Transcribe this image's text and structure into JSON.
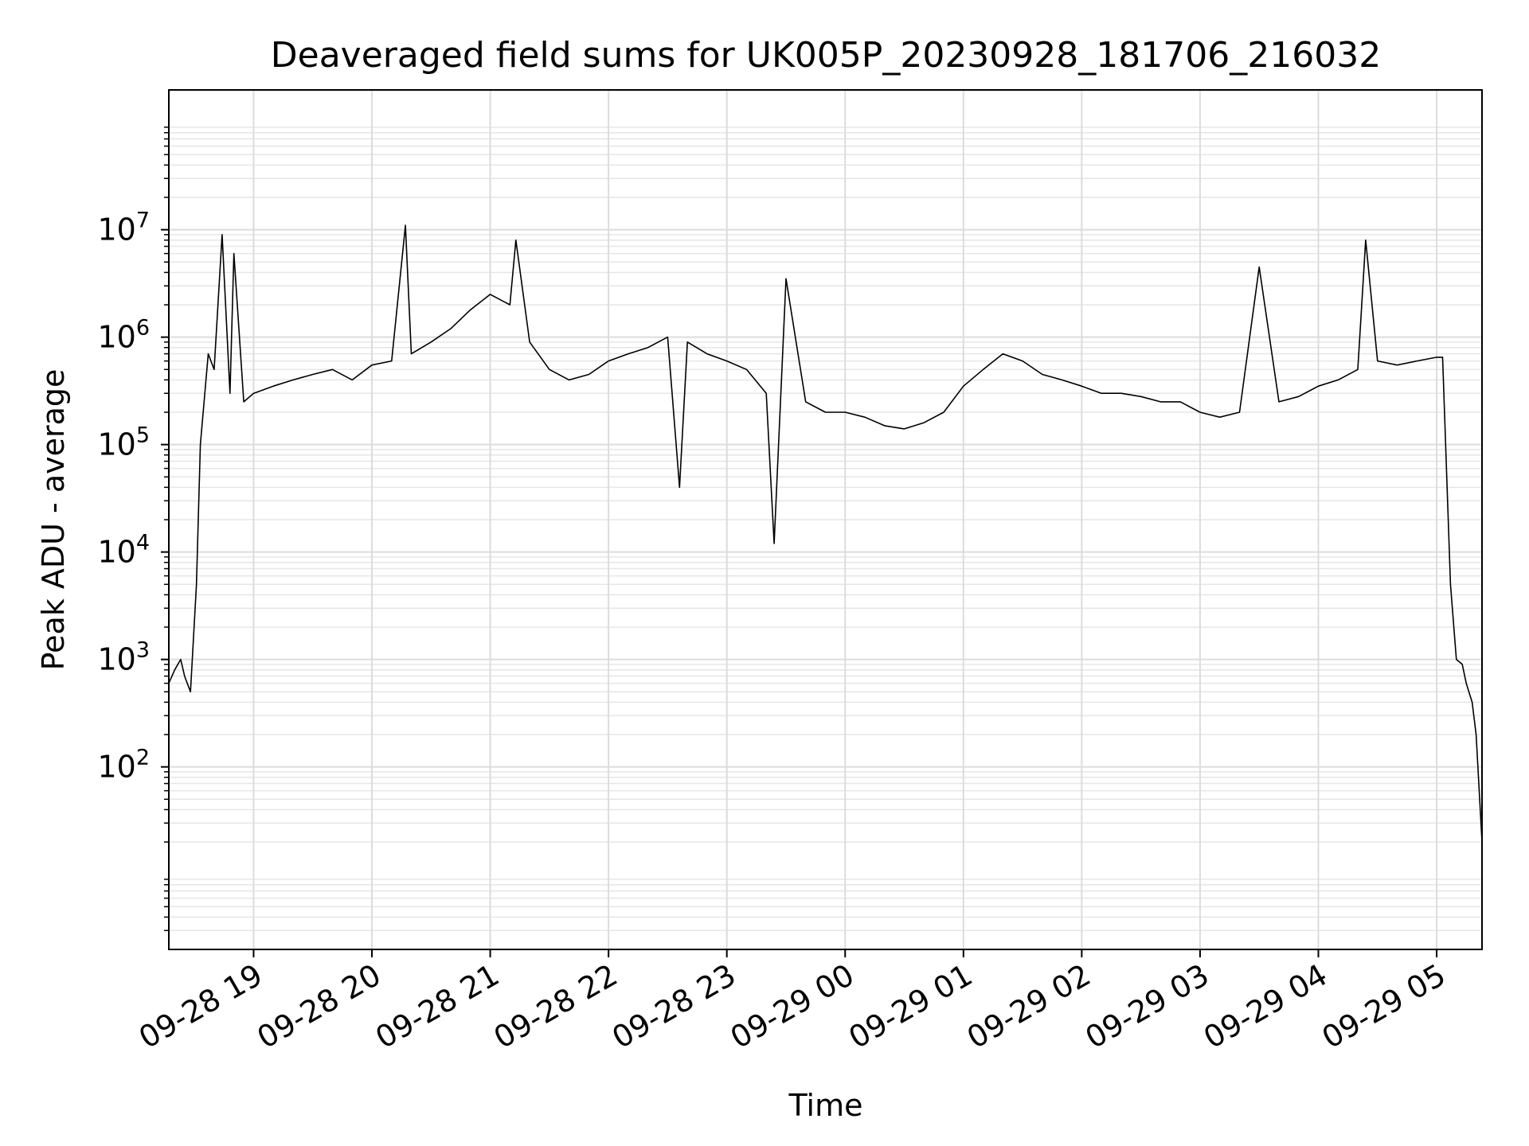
{
  "chart_data": {
    "type": "line",
    "title": "Deaveraged field sums for UK005P_20230928_181706_216032",
    "xlabel": "Time",
    "ylabel": "Peak ADU - average",
    "yscale": "log",
    "ylim": [
      2,
      200000000
    ],
    "xlim": [
      "2023-09-28 18:17",
      "2023-09-29 05:23"
    ],
    "grid": "major and minor",
    "line_color": "#000000",
    "x_ticks": [
      "09-28 19",
      "09-28 20",
      "09-28 21",
      "09-28 22",
      "09-28 23",
      "09-29 00",
      "09-29 01",
      "09-29 02",
      "09-29 03",
      "09-29 04",
      "09-29 05"
    ],
    "y_ticks": [
      {
        "value": 100,
        "exp": "2"
      },
      {
        "value": 1000,
        "exp": "3"
      },
      {
        "value": 10000,
        "exp": "4"
      },
      {
        "value": 100000,
        "exp": "5"
      },
      {
        "value": 1000000,
        "exp": "6"
      },
      {
        "value": 10000000,
        "exp": "7"
      }
    ],
    "series": [
      {
        "x": [
          "2023-09-28 18:17",
          "2023-09-28 18:20",
          "2023-09-28 18:23",
          "2023-09-28 18:25",
          "2023-09-28 18:28",
          "2023-09-28 18:31",
          "2023-09-28 18:33",
          "2023-09-28 18:37",
          "2023-09-28 18:40",
          "2023-09-28 18:44",
          "2023-09-28 18:48",
          "2023-09-28 18:50",
          "2023-09-28 18:55",
          "2023-09-28 19:00",
          "2023-09-28 19:10",
          "2023-09-28 19:20",
          "2023-09-28 19:30",
          "2023-09-28 19:40",
          "2023-09-28 19:50",
          "2023-09-28 20:00",
          "2023-09-28 20:10",
          "2023-09-28 20:17",
          "2023-09-28 20:20",
          "2023-09-28 20:30",
          "2023-09-28 20:40",
          "2023-09-28 20:50",
          "2023-09-28 21:00",
          "2023-09-28 21:10",
          "2023-09-28 21:13",
          "2023-09-28 21:20",
          "2023-09-28 21:30",
          "2023-09-28 21:40",
          "2023-09-28 21:50",
          "2023-09-28 22:00",
          "2023-09-28 22:10",
          "2023-09-28 22:20",
          "2023-09-28 22:30",
          "2023-09-28 22:36",
          "2023-09-28 22:40",
          "2023-09-28 22:50",
          "2023-09-28 23:00",
          "2023-09-28 23:10",
          "2023-09-28 23:20",
          "2023-09-28 23:24",
          "2023-09-28 23:30",
          "2023-09-28 23:40",
          "2023-09-28 23:50",
          "2023-09-29 00:00",
          "2023-09-29 00:10",
          "2023-09-29 00:20",
          "2023-09-29 00:30",
          "2023-09-29 00:40",
          "2023-09-29 00:50",
          "2023-09-29 01:00",
          "2023-09-29 01:10",
          "2023-09-29 01:20",
          "2023-09-29 01:30",
          "2023-09-29 01:40",
          "2023-09-29 01:50",
          "2023-09-29 02:00",
          "2023-09-29 02:10",
          "2023-09-29 02:20",
          "2023-09-29 02:30",
          "2023-09-29 02:40",
          "2023-09-29 02:50",
          "2023-09-29 03:00",
          "2023-09-29 03:10",
          "2023-09-29 03:20",
          "2023-09-29 03:30",
          "2023-09-29 03:40",
          "2023-09-29 03:50",
          "2023-09-29 04:00",
          "2023-09-29 04:10",
          "2023-09-29 04:20",
          "2023-09-29 04:24",
          "2023-09-29 04:30",
          "2023-09-29 04:40",
          "2023-09-29 04:50",
          "2023-09-29 05:00",
          "2023-09-29 05:03",
          "2023-09-29 05:07",
          "2023-09-29 05:10",
          "2023-09-29 05:13",
          "2023-09-29 05:15",
          "2023-09-29 05:18",
          "2023-09-29 05:20",
          "2023-09-29 05:23"
        ],
        "values": [
          600,
          800,
          1000,
          700,
          500,
          5000,
          100000,
          700000,
          500000,
          9000000,
          300000,
          6000000,
          250000,
          300000,
          350000,
          400000,
          450000,
          500000,
          400000,
          550000,
          600000,
          11000000,
          700000,
          900000,
          1200000,
          1800000,
          2500000,
          2000000,
          8000000,
          900000,
          500000,
          400000,
          450000,
          600000,
          700000,
          800000,
          1000000,
          40000,
          900000,
          700000,
          600000,
          500000,
          300000,
          12000,
          3500000,
          250000,
          200000,
          200000,
          180000,
          150000,
          140000,
          160000,
          200000,
          350000,
          500000,
          700000,
          600000,
          450000,
          400000,
          350000,
          300000,
          300000,
          280000,
          250000,
          250000,
          200000,
          180000,
          200000,
          4500000,
          250000,
          280000,
          350000,
          400000,
          500000,
          8000000,
          600000,
          550000,
          600000,
          650000,
          650000,
          5000,
          1000,
          900,
          600,
          400,
          200,
          20
        ]
      }
    ]
  }
}
